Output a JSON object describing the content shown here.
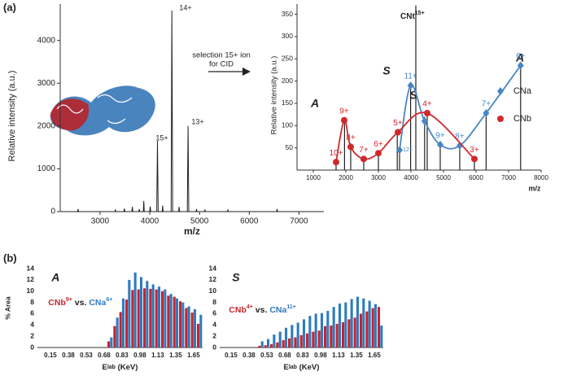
{
  "labels": {
    "panel_a": "(a)",
    "panel_b": "(b)",
    "arrow_line1": "selection 15+ ion",
    "arrow_line2": "for CID"
  },
  "chart_data": [
    {
      "type": "line",
      "xlabel": "m/z",
      "ylabel": "Relative intensity (a.u.)",
      "color": "#222222",
      "peak_labels": [
        "15+",
        "14+",
        "13+"
      ],
      "x": [
        2200,
        2550,
        2560,
        2570,
        3300,
        3310,
        3320,
        3480,
        3490,
        3500,
        3640,
        3650,
        3660,
        3780,
        3790,
        3800,
        3870,
        3880,
        3890,
        4000,
        4010,
        4020,
        4140,
        4155,
        4170,
        4250,
        4260,
        4270,
        4430,
        4445,
        4460,
        4580,
        4590,
        4600,
        4755,
        4770,
        4785,
        4930,
        4940,
        4950,
        5100,
        5110,
        5120,
        5560,
        5570,
        5580,
        6550,
        6560,
        6570,
        7450
      ],
      "y": [
        0,
        0,
        60,
        0,
        0,
        40,
        0,
        0,
        70,
        0,
        0,
        110,
        0,
        0,
        60,
        0,
        0,
        250,
        0,
        0,
        120,
        0,
        0,
        1650,
        0,
        0,
        140,
        0,
        0,
        4700,
        0,
        0,
        110,
        0,
        0,
        2000,
        0,
        0,
        60,
        0,
        0,
        40,
        0,
        0,
        40,
        0,
        0,
        60,
        0,
        0
      ],
      "xlim": [
        2200,
        7500
      ],
      "ylim": [
        0,
        4850
      ],
      "xticks": [
        3000,
        4000,
        5000,
        6000,
        7000
      ],
      "yticks": [
        0,
        1000,
        2000,
        3000,
        4000
      ]
    },
    {
      "type": "scatter",
      "xlabel": "m/z",
      "ylabel": "Relative intensity (a.u.)",
      "precursor_label": "CNt",
      "precursor_charge": "15+",
      "annotations": [
        "A",
        "S",
        "S",
        "A"
      ],
      "legend": "right",
      "series": [
        {
          "name": "CNa",
          "color": "#4a86c5",
          "marker": "diamond",
          "x": [
            3650,
            3990,
            4420,
            4900,
            5500,
            6310,
            7370
          ],
          "y": [
            45,
            190,
            110,
            57,
            55,
            128,
            235
          ],
          "charges": [
            "12+",
            "11+",
            null,
            "9+",
            "8+",
            "7+",
            "6+"
          ]
        },
        {
          "name": "CNb",
          "color": "#d0282c",
          "marker": "circle",
          "x": [
            1700,
            1950,
            2150,
            2550,
            3000,
            3600,
            4500,
            5950
          ],
          "y": [
            18,
            112,
            52,
            25,
            38,
            85,
            128,
            25
          ],
          "charges": [
            "10+",
            "9+",
            "8+",
            "7+",
            "6+",
            "5+",
            "4+",
            "3+"
          ]
        }
      ],
      "peaks": {
        "x": [
          1700,
          1960,
          2150,
          2550,
          3000,
          3580,
          3650,
          3990,
          4150,
          4420,
          4500,
          4900,
          5500,
          5950,
          6310,
          7370
        ],
        "y": [
          20,
          110,
          60,
          25,
          35,
          85,
          50,
          190,
          370,
          120,
          130,
          55,
          55,
          25,
          130,
          235
        ]
      },
      "xlim": [
        500,
        8000
      ],
      "ylim": [
        0,
        373
      ],
      "xticks": [
        1000,
        2000,
        3000,
        4000,
        5000,
        6000,
        7000,
        8000
      ],
      "yticks": [
        50,
        100,
        150,
        200,
        250,
        300,
        350
      ]
    },
    {
      "type": "bar",
      "title": "A",
      "ylabel": "% Area",
      "xlabel": "E",
      "xlabel_sub": "lab",
      "xlabel_unit": " (KeV)",
      "legend_parts": [
        "CNb",
        "9+",
        " vs. ",
        "CNa",
        "6+"
      ],
      "categories": [
        "0.15",
        null,
        null,
        "0.38",
        null,
        null,
        "0.53",
        null,
        null,
        "0.68",
        null,
        null,
        "0.83",
        null,
        null,
        "0.98",
        null,
        null,
        "1.13",
        null,
        null,
        "1.35",
        null,
        null,
        "1.65",
        null
      ],
      "series": [
        {
          "name": "CNb",
          "color": "#c8242c",
          "values": [
            null,
            null,
            null,
            null,
            null,
            null,
            null,
            null,
            null,
            null,
            1.1,
            3.8,
            6.3,
            8.5,
            10.2,
            10.3,
            10.5,
            10.4,
            10.3,
            10.0,
            9.2,
            9.0,
            8.2,
            7.0,
            6.2,
            4.2
          ]
        },
        {
          "name": "CNa",
          "color": "#2e7bbf",
          "values": [
            null,
            null,
            null,
            null,
            null,
            null,
            null,
            null,
            null,
            null,
            1.8,
            5.3,
            8.7,
            12.0,
            13.3,
            12.5,
            11.8,
            11.2,
            10.8,
            10.3,
            9.5,
            8.7,
            8.0,
            7.3,
            6.8,
            5.8
          ]
        }
      ],
      "ylim": [
        0,
        14
      ],
      "yticks": [
        0,
        2,
        4,
        6,
        8,
        10,
        12,
        14
      ]
    },
    {
      "type": "bar",
      "title": "S",
      "xlabel": "E",
      "xlabel_sub": "lab",
      "xlabel_unit": " (KeV)",
      "legend_parts": [
        "CNb",
        "4+",
        " vs. ",
        "CNa",
        "11+"
      ],
      "categories": [
        "0.15",
        null,
        null,
        "0.38",
        null,
        null,
        "0.53",
        null,
        null,
        "0.68",
        null,
        null,
        "0.83",
        null,
        null,
        "0.98",
        null,
        null,
        "1.13",
        null,
        null,
        "1.35",
        null,
        null,
        "1.65",
        null
      ],
      "series": [
        {
          "name": "CNb",
          "color": "#c8242c",
          "values": [
            null,
            null,
            null,
            null,
            null,
            0.3,
            0.4,
            0.6,
            0.9,
            1.3,
            1.6,
            1.8,
            2.2,
            2.5,
            2.8,
            3.0,
            3.8,
            3.9,
            4.2,
            4.5,
            5.0,
            5.3,
            6.0,
            6.4,
            7.0,
            7.2
          ]
        },
        {
          "name": "CNa",
          "color": "#2e7bbf",
          "values": [
            null,
            null,
            null,
            null,
            null,
            1.1,
            1.5,
            2.3,
            2.8,
            3.5,
            4.0,
            4.4,
            5.0,
            5.6,
            6.0,
            6.1,
            6.5,
            7.2,
            7.8,
            8.0,
            8.6,
            9.0,
            8.7,
            8.3,
            7.7,
            3.9
          ]
        }
      ],
      "ylim": [
        0,
        14
      ],
      "yticks": [
        0,
        2,
        4,
        6,
        8,
        10,
        12,
        14
      ]
    }
  ]
}
